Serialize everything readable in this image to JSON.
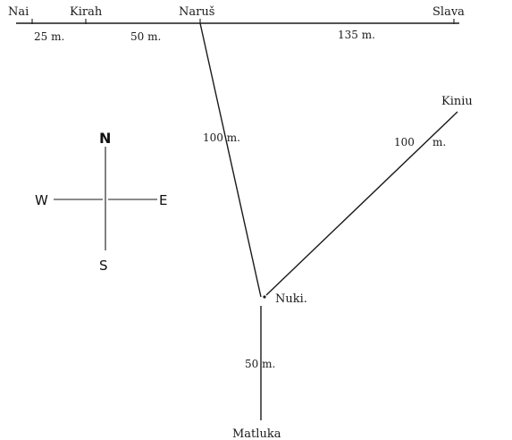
{
  "places": {
    "nai": "Nai",
    "kirah": "Kirah",
    "narus": "Naruš",
    "slava": "Slava",
    "kiniu": "Kiniu",
    "nuki": "Nuki.",
    "matluka": "Matluka"
  },
  "distances": {
    "nai_kirah": "25 m.",
    "kirah_narus": "50 m.",
    "narus_slava": "135 m.",
    "narus_nuki": "100 m.",
    "kiniu_nuki_num": "100",
    "kiniu_nuki_unit": "m.",
    "nuki_matluka": "50 m."
  },
  "compass": {
    "north": "N",
    "south": "S",
    "east": "E",
    "west": "W"
  }
}
